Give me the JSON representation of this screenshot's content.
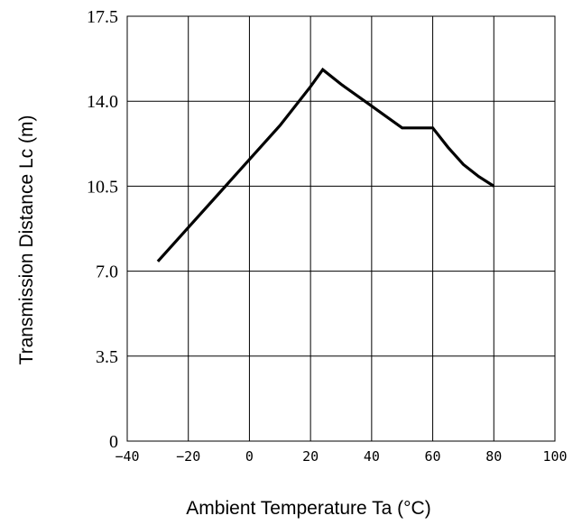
{
  "chart_data": {
    "type": "line",
    "title": "",
    "xlabel": "Ambient Temperature Ta (°C)",
    "ylabel": "Transmission Distance Lc (m)",
    "xlim": [
      -40,
      100
    ],
    "ylim": [
      0,
      17.5
    ],
    "x_ticks": [
      "−40",
      "−20",
      "0",
      "20",
      "40",
      "60",
      "80",
      "100"
    ],
    "x_tick_values": [
      -40,
      -20,
      0,
      20,
      40,
      60,
      80,
      100
    ],
    "y_ticks": [
      "0",
      "3.5",
      "7.0",
      "10.5",
      "14.0",
      "17.5"
    ],
    "y_tick_values": [
      0,
      3.5,
      7.0,
      10.5,
      14.0,
      17.5
    ],
    "grid": true,
    "series": [
      {
        "x": [
          -30,
          -20,
          -10,
          0,
          10,
          20,
          24,
          30,
          40,
          50,
          60,
          65,
          70,
          75,
          80
        ],
        "y": [
          7.4,
          8.8,
          10.2,
          11.6,
          13.0,
          14.6,
          15.3,
          14.7,
          13.8,
          12.9,
          12.9,
          12.1,
          11.4,
          10.9,
          10.5
        ]
      }
    ]
  }
}
